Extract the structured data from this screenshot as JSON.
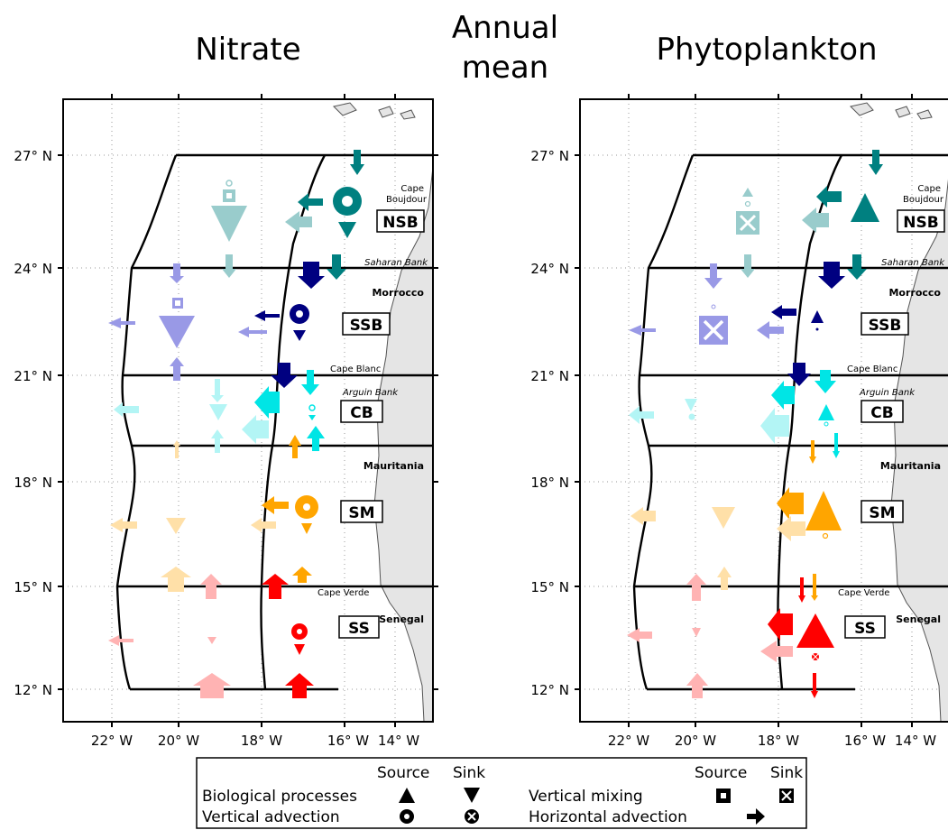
{
  "titles": {
    "center_line1": "Annual",
    "center_line2": "mean",
    "left": "Nitrate",
    "right": "Phytoplankton"
  },
  "axes": {
    "lat_ticks": [
      "27° N",
      "24° N",
      "21° N",
      "18° N",
      "15° N",
      "12° N"
    ],
    "lon_ticks": [
      "22° W",
      "20° W",
      "18° W",
      "16° W",
      "14° W"
    ]
  },
  "regions": [
    "NSB",
    "SSB",
    "CB",
    "SM",
    "SS"
  ],
  "places": {
    "cape_boujdour_1": "Cape",
    "cape_boujdour_2": "Boujdour",
    "saharan_bank": "Saharan Bank",
    "morrocco": "Morrocco",
    "cape_blanc": "Cape Blanc",
    "arguin_bank": "Arguin Bank",
    "mauritania": "Mauritania",
    "cape_verde": "Cape Verde",
    "senegal": "Senegal"
  },
  "legend": {
    "source": "Source",
    "sink": "Sink",
    "bio": "Biological processes",
    "vadv": "Vertical advection",
    "vmix": "Vertical mixing",
    "hadv": "Horizontal advection"
  },
  "colors": {
    "NSB": "#008080",
    "NSB_offshore": "#99cccc",
    "SSB": "#000080",
    "SSB_offshore": "#9999e6",
    "CB": "#00e5e5",
    "CB_offshore": "#b3f5f5",
    "SM": "#ffa500",
    "SM_offshore": "#ffe0a8",
    "SS": "#ff0000",
    "SS_offshore": "#ffb3b3",
    "land": "#e5e5e5"
  }
}
